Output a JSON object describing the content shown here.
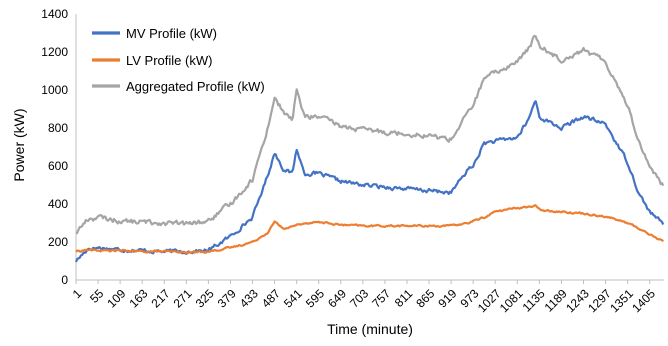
{
  "chart_data": {
    "type": "line",
    "title": "",
    "xlabel": "Time (minute)",
    "ylabel": "Power (kW)",
    "xlim": [
      1,
      1440
    ],
    "ylim": [
      0,
      1400
    ],
    "grid": false,
    "legend_position": "top-left",
    "x_tick_labels": [
      "1",
      "55",
      "109",
      "163",
      "217",
      "271",
      "325",
      "379",
      "433",
      "487",
      "541",
      "595",
      "649",
      "703",
      "757",
      "811",
      "865",
      "919",
      "973",
      "1027",
      "1081",
      "1135",
      "1189",
      "1243",
      "1297",
      "1351",
      "1405"
    ],
    "y_tick_labels": [
      "0",
      "200",
      "400",
      "600",
      "800",
      "1000",
      "1200",
      "1400"
    ],
    "x": [
      1,
      30,
      55,
      109,
      163,
      217,
      271,
      325,
      379,
      433,
      470,
      487,
      510,
      530,
      541,
      560,
      595,
      649,
      703,
      757,
      811,
      865,
      919,
      960,
      973,
      1000,
      1027,
      1081,
      1110,
      1125,
      1135,
      1160,
      1189,
      1243,
      1297,
      1351,
      1380,
      1405,
      1440
    ],
    "series": [
      {
        "name": "MV Profile (kW)",
        "color": "#4472C4",
        "values": [
          100,
          165,
          170,
          160,
          155,
          150,
          150,
          155,
          230,
          330,
          550,
          670,
          580,
          560,
          690,
          560,
          560,
          520,
          500,
          490,
          480,
          470,
          460,
          580,
          600,
          720,
          730,
          750,
          850,
          950,
          860,
          830,
          800,
          860,
          820,
          620,
          450,
          360,
          290
        ]
      },
      {
        "name": "LV Profile (kW)",
        "color": "#ED7D31",
        "values": [
          150,
          160,
          155,
          155,
          150,
          150,
          145,
          150,
          170,
          200,
          250,
          305,
          270,
          280,
          290,
          300,
          305,
          290,
          285,
          285,
          285,
          285,
          285,
          300,
          310,
          330,
          360,
          380,
          385,
          390,
          370,
          365,
          360,
          350,
          335,
          300,
          270,
          240,
          200
        ]
      },
      {
        "name": "Aggregated Profile (kW)",
        "color": "#A5A5A5",
        "values": [
          250,
          320,
          330,
          310,
          305,
          300,
          295,
          310,
          400,
          530,
          800,
          960,
          880,
          840,
          1000,
          860,
          860,
          810,
          790,
          780,
          770,
          760,
          740,
          880,
          920,
          1060,
          1090,
          1150,
          1220,
          1290,
          1230,
          1200,
          1160,
          1210,
          1150,
          920,
          720,
          600,
          490
        ]
      }
    ]
  }
}
